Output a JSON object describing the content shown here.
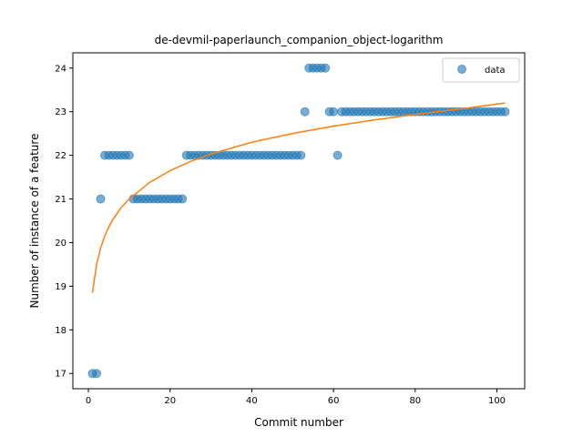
{
  "chart_data": {
    "type": "scatter",
    "title": "de-devmil-paperlaunch_companion_object-logarithm",
    "xlabel": "Commit number",
    "ylabel": "Number of instance of a feature",
    "xlim": [
      -3.8,
      106.8
    ],
    "ylim": [
      16.65,
      24.35
    ],
    "xticks": [
      0,
      20,
      40,
      60,
      80,
      100
    ],
    "yticks": [
      17,
      18,
      19,
      20,
      21,
      22,
      23,
      24
    ],
    "grid": false,
    "legend": {
      "placement": "top-right",
      "entries": [
        "data"
      ]
    },
    "colors": {
      "data": "#1f77b4",
      "fit": "#ff7f0e"
    },
    "series": [
      {
        "name": "data",
        "kind": "scatter",
        "x": [
          1,
          2,
          3,
          4,
          5,
          6,
          7,
          8,
          9,
          10,
          11,
          12,
          13,
          14,
          15,
          16,
          17,
          18,
          19,
          20,
          21,
          22,
          23,
          24,
          25,
          26,
          27,
          28,
          29,
          30,
          31,
          32,
          33,
          34,
          35,
          36,
          37,
          38,
          39,
          40,
          41,
          42,
          43,
          44,
          45,
          46,
          47,
          48,
          49,
          50,
          51,
          52,
          53,
          54,
          55,
          56,
          57,
          58,
          59,
          60,
          61,
          62,
          63,
          64,
          65,
          66,
          67,
          68,
          69,
          70,
          71,
          72,
          73,
          74,
          75,
          76,
          77,
          78,
          79,
          80,
          81,
          82,
          83,
          84,
          85,
          86,
          87,
          88,
          89,
          90,
          91,
          92,
          93,
          94,
          95,
          96,
          97,
          98,
          99,
          100,
          101,
          102
        ],
        "y": [
          17,
          17,
          21,
          22,
          22,
          22,
          22,
          22,
          22,
          22,
          21,
          21,
          21,
          21,
          21,
          21,
          21,
          21,
          21,
          21,
          21,
          21,
          21,
          22,
          22,
          22,
          22,
          22,
          22,
          22,
          22,
          22,
          22,
          22,
          22,
          22,
          22,
          22,
          22,
          22,
          22,
          22,
          22,
          22,
          22,
          22,
          22,
          22,
          22,
          22,
          22,
          22,
          23,
          24,
          24,
          24,
          24,
          24,
          23,
          23,
          22,
          23,
          23,
          23,
          23,
          23,
          23,
          23,
          23,
          23,
          23,
          23,
          23,
          23,
          23,
          23,
          23,
          23,
          23,
          23,
          23,
          23,
          23,
          23,
          23,
          23,
          23,
          23,
          23,
          23,
          23,
          23,
          23,
          23,
          23,
          23,
          23,
          23,
          23,
          23,
          23,
          23
        ]
      },
      {
        "name": "",
        "kind": "line",
        "model": "logarithmic",
        "x": [
          1,
          2,
          3,
          4,
          5,
          6,
          8,
          10,
          15,
          20,
          25,
          30,
          40,
          50,
          60,
          70,
          80,
          90,
          102
        ],
        "y": [
          18.85,
          19.5,
          19.88,
          20.15,
          20.36,
          20.53,
          20.8,
          21.0,
          21.38,
          21.65,
          21.86,
          22.03,
          22.3,
          22.5,
          22.67,
          22.81,
          22.94,
          23.05,
          23.2
        ]
      }
    ]
  }
}
